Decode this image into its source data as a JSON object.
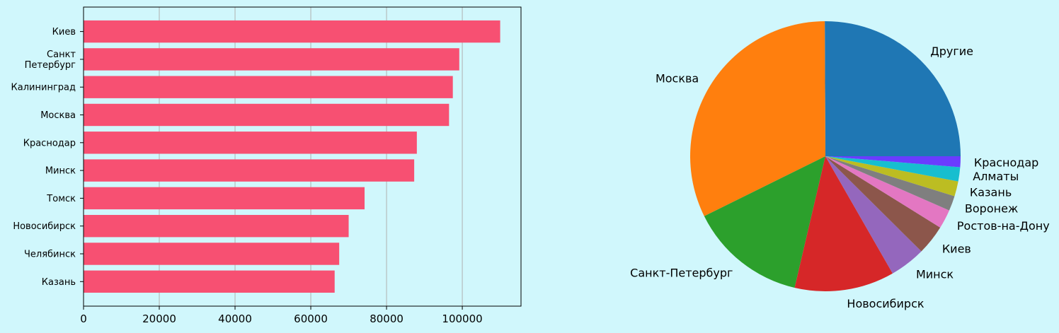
{
  "chart_data": [
    {
      "type": "bar",
      "orientation": "horizontal",
      "categories": [
        "Киев",
        "Санкт\nПетербург",
        "Калининград",
        "Москва",
        "Краснодар",
        "Минск",
        "Томск",
        "Новосибирск",
        "Челябинск",
        "Казань"
      ],
      "values": [
        110000,
        99200,
        97500,
        96500,
        88000,
        87300,
        74200,
        70000,
        67500,
        66300
      ],
      "xlim": [
        0,
        115500
      ],
      "xticks": [
        0,
        20000,
        40000,
        60000,
        80000,
        100000
      ],
      "xtick_labels": [
        "0",
        "20000",
        "40000",
        "60000",
        "80000",
        "100000"
      ],
      "grid": "x",
      "color": "#f75072"
    },
    {
      "type": "pie",
      "labels": [
        "Другие",
        "Москва",
        "Санкт-Петербург",
        "Новосибирск",
        "Минск",
        "Киев",
        "Ростов-на-Дону",
        "Воронеж",
        "Казань",
        "Алматы",
        "Краснодар"
      ],
      "values": [
        25.2,
        32.4,
        14.1,
        12.0,
        4.3,
        3.6,
        2.3,
        1.8,
        1.8,
        1.7,
        1.3
      ],
      "colors": [
        "#1f77b4",
        "#ff7f0e",
        "#2ca02c",
        "#d62728",
        "#9467bd",
        "#8c564b",
        "#e377c2",
        "#7f7f7f",
        "#bcbd22",
        "#17becf",
        "#6a3cff"
      ]
    }
  ]
}
